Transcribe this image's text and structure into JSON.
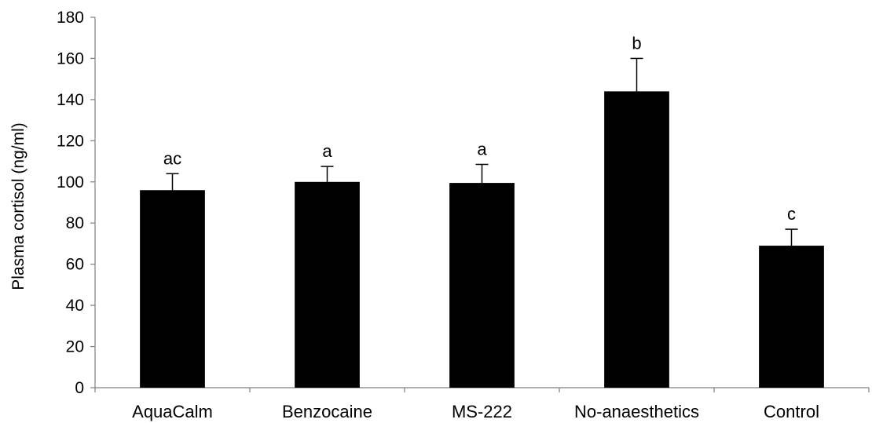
{
  "chart_data": {
    "type": "bar",
    "title": "",
    "xlabel": "",
    "ylabel": "Plasma cortisol (ng/ml)",
    "ylim": [
      0,
      180
    ],
    "yticks": [
      0,
      20,
      40,
      60,
      80,
      100,
      120,
      140,
      160,
      180
    ],
    "grid": false,
    "legend": "none",
    "bar_color": "#000000",
    "categories": [
      "AquaCalm",
      "Benzocaine",
      "MS-222",
      "No-anaesthetics",
      "Control"
    ],
    "values": [
      96,
      100,
      99.5,
      144,
      69
    ],
    "error_plus": [
      8,
      7.5,
      9,
      16,
      8
    ],
    "significance_letters": [
      "ac",
      "a",
      "a",
      "b",
      "c"
    ]
  }
}
